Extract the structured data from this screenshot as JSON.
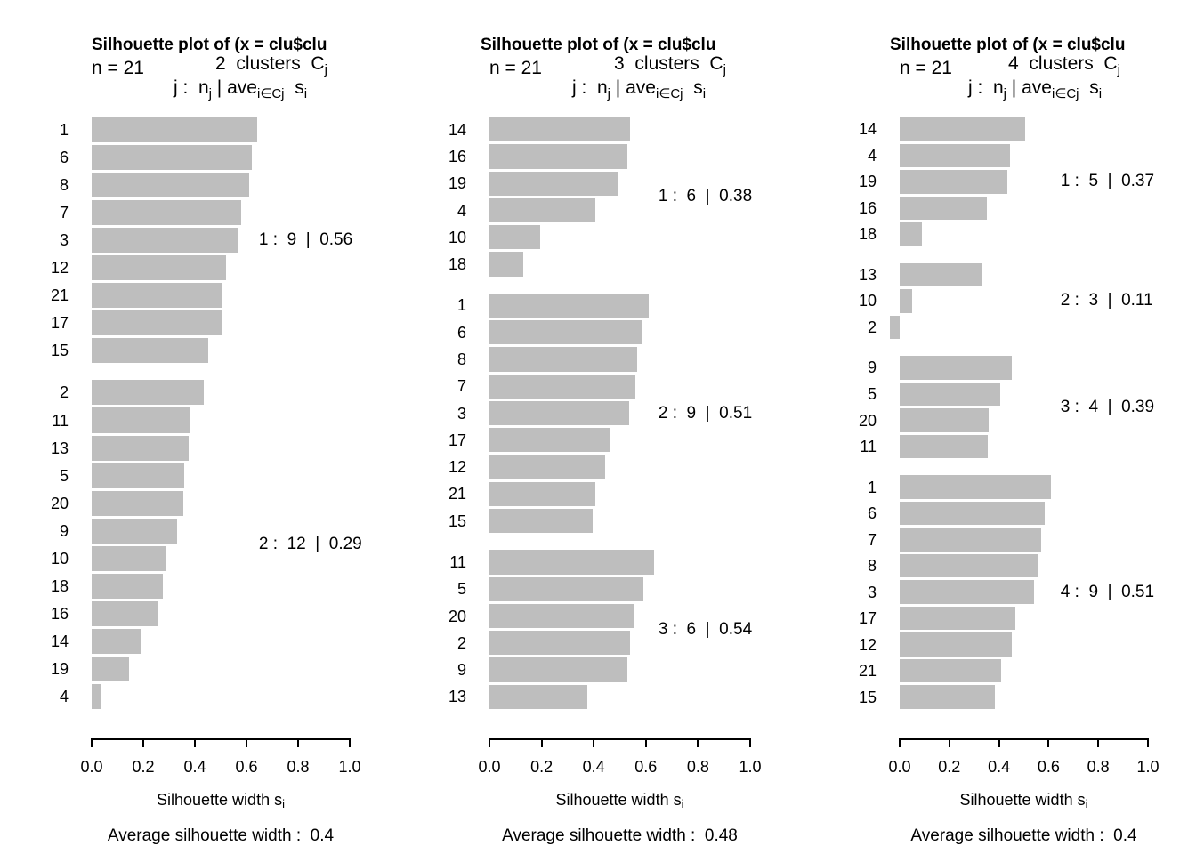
{
  "colors": {
    "bar": "#bebebe",
    "text": "#000000",
    "background": "#ffffff"
  },
  "labels": {
    "clusters_C": "  clusters  C",
    "j": "j",
    "line3_prefix": "j :  n",
    "line3_pipe": " | ave",
    "line3_sub2": "i∈Cj",
    "line3_s": "  s",
    "line3_i": "i",
    "xlabel_text": "Silhouette width s",
    "xlabel_sub": "i"
  },
  "axis": {
    "ticks": [
      "0.0",
      "0.2",
      "0.4",
      "0.6",
      "0.8",
      "1.0"
    ],
    "tick_values": [
      0,
      0.2,
      0.4,
      0.6,
      0.8,
      1.0
    ]
  },
  "chart_data": [
    {
      "type": "bar",
      "title": "Silhouette plot of (x = clu$clu",
      "n_label": "n = 21",
      "n": 21,
      "k": "2",
      "xlabel": "Silhouette width s_i",
      "xlim": [
        0,
        1
      ],
      "x_ticks": [
        0,
        0.2,
        0.4,
        0.6,
        0.8,
        1.0
      ],
      "average_silhouette_width": 0.4,
      "avg_label": "Average silhouette width :  0.4",
      "clusters": [
        {
          "id": 1,
          "size": 9,
          "avg": 0.56,
          "annotation": "1 :  9  |  0.56",
          "items": [
            {
              "label": "1",
              "value": 0.64
            },
            {
              "label": "6",
              "value": 0.62
            },
            {
              "label": "8",
              "value": 0.61
            },
            {
              "label": "7",
              "value": 0.58
            },
            {
              "label": "3",
              "value": 0.565
            },
            {
              "label": "12",
              "value": 0.52
            },
            {
              "label": "21",
              "value": 0.505
            },
            {
              "label": "17",
              "value": 0.505
            },
            {
              "label": "15",
              "value": 0.45
            }
          ]
        },
        {
          "id": 2,
          "size": 12,
          "avg": 0.29,
          "annotation": "2 :  12  |  0.29",
          "items": [
            {
              "label": "2",
              "value": 0.435
            },
            {
              "label": "11",
              "value": 0.38
            },
            {
              "label": "13",
              "value": 0.375
            },
            {
              "label": "5",
              "value": 0.36
            },
            {
              "label": "20",
              "value": 0.355
            },
            {
              "label": "9",
              "value": 0.33
            },
            {
              "label": "10",
              "value": 0.29
            },
            {
              "label": "18",
              "value": 0.275
            },
            {
              "label": "16",
              "value": 0.255
            },
            {
              "label": "14",
              "value": 0.19
            },
            {
              "label": "19",
              "value": 0.145
            },
            {
              "label": "4",
              "value": 0.035
            }
          ]
        }
      ]
    },
    {
      "type": "bar",
      "title": "Silhouette plot of (x = clu$clu",
      "n_label": "n = 21",
      "n": 21,
      "k": "3",
      "xlabel": "Silhouette width s_i",
      "xlim": [
        0,
        1
      ],
      "x_ticks": [
        0,
        0.2,
        0.4,
        0.6,
        0.8,
        1.0
      ],
      "average_silhouette_width": 0.48,
      "avg_label": "Average silhouette width :  0.48",
      "clusters": [
        {
          "id": 1,
          "size": 6,
          "avg": 0.38,
          "annotation": "1 :  6  |  0.38",
          "items": [
            {
              "label": "14",
              "value": 0.54
            },
            {
              "label": "16",
              "value": 0.53
            },
            {
              "label": "19",
              "value": 0.49
            },
            {
              "label": "4",
              "value": 0.405
            },
            {
              "label": "10",
              "value": 0.195
            },
            {
              "label": "18",
              "value": 0.13
            }
          ]
        },
        {
          "id": 2,
          "size": 9,
          "avg": 0.51,
          "annotation": "2 :  9  |  0.51",
          "items": [
            {
              "label": "1",
              "value": 0.61
            },
            {
              "label": "6",
              "value": 0.585
            },
            {
              "label": "8",
              "value": 0.565
            },
            {
              "label": "7",
              "value": 0.56
            },
            {
              "label": "3",
              "value": 0.535
            },
            {
              "label": "17",
              "value": 0.465
            },
            {
              "label": "12",
              "value": 0.445
            },
            {
              "label": "21",
              "value": 0.405
            },
            {
              "label": "15",
              "value": 0.395
            }
          ]
        },
        {
          "id": 3,
          "size": 6,
          "avg": 0.54,
          "annotation": "3 :  6  |  0.54",
          "items": [
            {
              "label": "11",
              "value": 0.63
            },
            {
              "label": "5",
              "value": 0.59
            },
            {
              "label": "20",
              "value": 0.555
            },
            {
              "label": "2",
              "value": 0.54
            },
            {
              "label": "9",
              "value": 0.53
            },
            {
              "label": "13",
              "value": 0.375
            }
          ]
        }
      ]
    },
    {
      "type": "bar",
      "title": "Silhouette plot of (x = clu$clu",
      "n_label": "n = 21",
      "n": 21,
      "k": "4",
      "xlabel": "Silhouette width s_i",
      "xlim": [
        0,
        1
      ],
      "x_ticks": [
        0,
        0.2,
        0.4,
        0.6,
        0.8,
        1.0
      ],
      "average_silhouette_width": 0.4,
      "avg_label": "Average silhouette width :  0.4",
      "clusters": [
        {
          "id": 1,
          "size": 5,
          "avg": 0.37,
          "annotation": "1 :  5  |  0.37",
          "items": [
            {
              "label": "14",
              "value": 0.505
            },
            {
              "label": "4",
              "value": 0.445
            },
            {
              "label": "19",
              "value": 0.435
            },
            {
              "label": "16",
              "value": 0.35
            },
            {
              "label": "18",
              "value": 0.09
            }
          ]
        },
        {
          "id": 2,
          "size": 3,
          "avg": 0.11,
          "annotation": "2 :  3  |  0.11",
          "items": [
            {
              "label": "13",
              "value": 0.33
            },
            {
              "label": "10",
              "value": 0.05
            },
            {
              "label": "2",
              "value": -0.04
            }
          ]
        },
        {
          "id": 3,
          "size": 4,
          "avg": 0.39,
          "annotation": "3 :  4  |  0.39",
          "items": [
            {
              "label": "9",
              "value": 0.45
            },
            {
              "label": "5",
              "value": 0.405
            },
            {
              "label": "20",
              "value": 0.36
            },
            {
              "label": "11",
              "value": 0.355
            }
          ]
        },
        {
          "id": 4,
          "size": 9,
          "avg": 0.51,
          "annotation": "4 :  9  |  0.51",
          "items": [
            {
              "label": "1",
              "value": 0.61
            },
            {
              "label": "6",
              "value": 0.585
            },
            {
              "label": "7",
              "value": 0.57
            },
            {
              "label": "8",
              "value": 0.56
            },
            {
              "label": "3",
              "value": 0.54
            },
            {
              "label": "17",
              "value": 0.465
            },
            {
              "label": "12",
              "value": 0.45
            },
            {
              "label": "21",
              "value": 0.41
            },
            {
              "label": "15",
              "value": 0.385
            }
          ]
        }
      ]
    }
  ]
}
